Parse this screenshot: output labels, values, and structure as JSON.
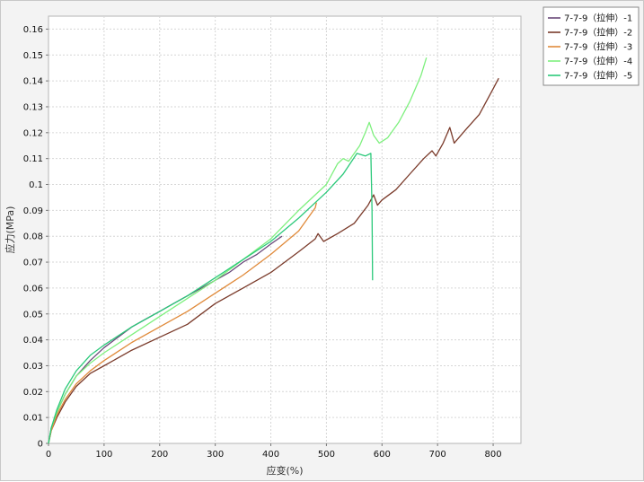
{
  "chart_data": {
    "type": "line",
    "title": "",
    "xlabel": "应变(%)",
    "ylabel": "应力(MPa)",
    "xlim": [
      0,
      850
    ],
    "ylim": [
      0,
      0.165
    ],
    "x_ticks": [
      "0",
      "100",
      "200",
      "300",
      "400",
      "500",
      "600",
      "700",
      "800"
    ],
    "y_ticks": [
      "0",
      "0.01",
      "0.02",
      "0.03",
      "0.04",
      "0.05",
      "0.06",
      "0.07",
      "0.08",
      "0.09",
      "0.1",
      "0.11",
      "0.12",
      "0.13",
      "0.14",
      "0.15",
      "0.16"
    ],
    "grid": true,
    "legend_position": "top-right",
    "series": [
      {
        "name": "7-7-9（拉伸）-1",
        "color": "#6a4a7a",
        "points": [
          [
            0,
            0
          ],
          [
            5,
            0.006
          ],
          [
            15,
            0.012
          ],
          [
            30,
            0.019
          ],
          [
            50,
            0.026
          ],
          [
            75,
            0.032
          ],
          [
            100,
            0.037
          ],
          [
            125,
            0.041
          ],
          [
            150,
            0.045
          ],
          [
            175,
            0.048
          ],
          [
            200,
            0.051
          ],
          [
            225,
            0.054
          ],
          [
            250,
            0.057
          ],
          [
            275,
            0.06
          ],
          [
            300,
            0.063
          ],
          [
            325,
            0.066
          ],
          [
            350,
            0.07
          ],
          [
            375,
            0.073
          ],
          [
            400,
            0.077
          ],
          [
            420,
            0.08
          ]
        ]
      },
      {
        "name": "7-7-9（拉伸）-2",
        "color": "#7a3a2a",
        "points": [
          [
            0,
            0
          ],
          [
            5,
            0.005
          ],
          [
            15,
            0.01
          ],
          [
            30,
            0.016
          ],
          [
            50,
            0.022
          ],
          [
            75,
            0.027
          ],
          [
            100,
            0.03
          ],
          [
            150,
            0.036
          ],
          [
            200,
            0.041
          ],
          [
            250,
            0.046
          ],
          [
            300,
            0.054
          ],
          [
            350,
            0.06
          ],
          [
            400,
            0.066
          ],
          [
            450,
            0.074
          ],
          [
            480,
            0.079
          ],
          [
            485,
            0.081
          ],
          [
            495,
            0.078
          ],
          [
            520,
            0.081
          ],
          [
            550,
            0.085
          ],
          [
            575,
            0.092
          ],
          [
            585,
            0.096
          ],
          [
            592,
            0.092
          ],
          [
            600,
            0.094
          ],
          [
            625,
            0.098
          ],
          [
            650,
            0.104
          ],
          [
            675,
            0.11
          ],
          [
            690,
            0.113
          ],
          [
            697,
            0.111
          ],
          [
            710,
            0.116
          ],
          [
            722,
            0.122
          ],
          [
            730,
            0.116
          ],
          [
            750,
            0.121
          ],
          [
            775,
            0.127
          ],
          [
            800,
            0.137
          ],
          [
            810,
            0.141
          ]
        ]
      },
      {
        "name": "7-7-9（拉伸）-3",
        "color": "#e08a3a",
        "points": [
          [
            0,
            0
          ],
          [
            5,
            0.005
          ],
          [
            15,
            0.011
          ],
          [
            30,
            0.017
          ],
          [
            50,
            0.023
          ],
          [
            75,
            0.028
          ],
          [
            100,
            0.032
          ],
          [
            150,
            0.039
          ],
          [
            200,
            0.045
          ],
          [
            250,
            0.051
          ],
          [
            300,
            0.058
          ],
          [
            350,
            0.065
          ],
          [
            400,
            0.073
          ],
          [
            450,
            0.082
          ],
          [
            480,
            0.091
          ],
          [
            482,
            0.093
          ]
        ]
      },
      {
        "name": "7-7-9（拉伸）-4",
        "color": "#7ef07e",
        "points": [
          [
            0,
            0
          ],
          [
            5,
            0.006
          ],
          [
            15,
            0.012
          ],
          [
            30,
            0.019
          ],
          [
            50,
            0.026
          ],
          [
            75,
            0.031
          ],
          [
            100,
            0.035
          ],
          [
            150,
            0.042
          ],
          [
            200,
            0.049
          ],
          [
            250,
            0.056
          ],
          [
            300,
            0.063
          ],
          [
            350,
            0.071
          ],
          [
            400,
            0.079
          ],
          [
            450,
            0.09
          ],
          [
            500,
            0.1
          ],
          [
            520,
            0.108
          ],
          [
            530,
            0.11
          ],
          [
            540,
            0.109
          ],
          [
            560,
            0.115
          ],
          [
            570,
            0.12
          ],
          [
            577,
            0.124
          ],
          [
            585,
            0.119
          ],
          [
            595,
            0.116
          ],
          [
            610,
            0.118
          ],
          [
            630,
            0.124
          ],
          [
            650,
            0.132
          ],
          [
            670,
            0.142
          ],
          [
            680,
            0.149
          ]
        ]
      },
      {
        "name": "7-7-9（拉伸）-5",
        "color": "#2bc97a",
        "points": [
          [
            0,
            0
          ],
          [
            5,
            0.006
          ],
          [
            15,
            0.013
          ],
          [
            30,
            0.021
          ],
          [
            50,
            0.028
          ],
          [
            75,
            0.034
          ],
          [
            100,
            0.038
          ],
          [
            150,
            0.045
          ],
          [
            200,
            0.051
          ],
          [
            250,
            0.057
          ],
          [
            300,
            0.064
          ],
          [
            350,
            0.071
          ],
          [
            400,
            0.078
          ],
          [
            450,
            0.087
          ],
          [
            500,
            0.097
          ],
          [
            530,
            0.104
          ],
          [
            555,
            0.112
          ],
          [
            570,
            0.111
          ],
          [
            580,
            0.112
          ],
          [
            582,
            0.09
          ],
          [
            583,
            0.063
          ]
        ]
      }
    ]
  }
}
